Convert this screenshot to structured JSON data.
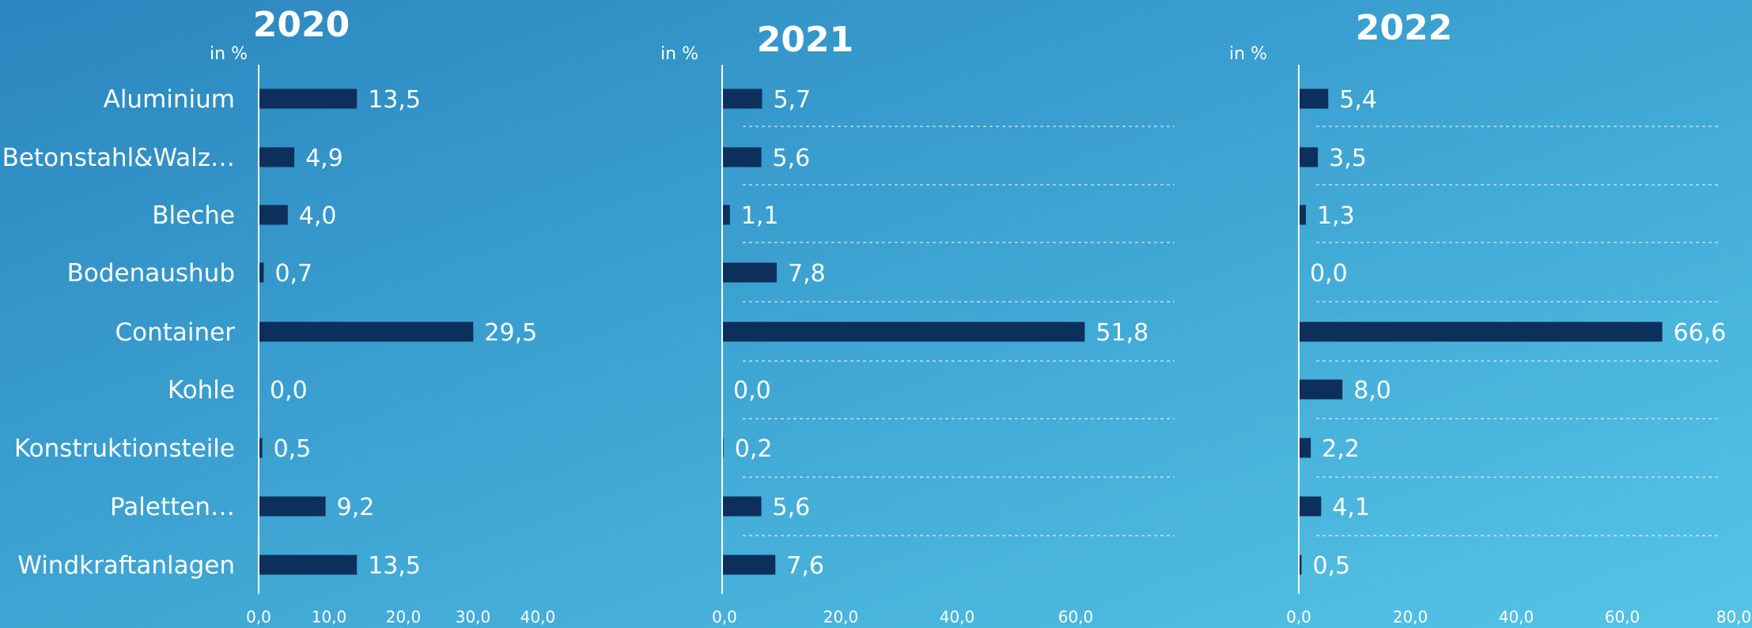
{
  "chart_data": [
    {
      "type": "bar",
      "orientation": "horizontal",
      "title": "2020",
      "unit_label": "in %",
      "categories": [
        "Aluminium",
        "Betonstahl&Walz…",
        "Bleche",
        "Bodenaushub",
        "Container",
        "Kohle",
        "Konstruktionsteile",
        "Paletten…",
        "Windkraftanlagen"
      ],
      "values": [
        13.5,
        4.9,
        4.0,
        0.7,
        29.5,
        0.0,
        0.5,
        9.2,
        13.5
      ],
      "value_labels": [
        "13,5",
        "4,9",
        "4,0",
        "0,7",
        "29,5",
        "0,0",
        "0,5",
        "9,2",
        "13,5"
      ],
      "xlim": [
        0,
        40
      ],
      "ticks": [
        "0,0",
        "10,0",
        "20,0",
        "30,0",
        "40,0"
      ],
      "gridlines": false
    },
    {
      "type": "bar",
      "orientation": "horizontal",
      "title": "2021",
      "unit_label": "in %",
      "categories": [
        "Aluminium",
        "Betonstahl&Walz…",
        "Bleche",
        "Bodenaushub",
        "Container",
        "Kohle",
        "Konstruktionsteile",
        "Paletten…",
        "Windkraftanlagen"
      ],
      "values": [
        5.7,
        5.6,
        1.1,
        7.8,
        51.8,
        0.0,
        0.2,
        5.6,
        7.6
      ],
      "value_labels": [
        "5,7",
        "5,6",
        "1,1",
        "7,8",
        "51,8",
        "0,0",
        "0,2",
        "5,6",
        "7,6"
      ],
      "xlim": [
        0,
        60
      ],
      "ticks": [
        "0,0",
        "20,0",
        "40,0",
        "60,0"
      ],
      "gridlines": true
    },
    {
      "type": "bar",
      "orientation": "horizontal",
      "title": "2022",
      "unit_label": "in %",
      "categories": [
        "Aluminium",
        "Betonstahl&Walz…",
        "Bleche",
        "Bodenaushub",
        "Container",
        "Kohle",
        "Konstruktionsteile",
        "Paletten…",
        "Windkraftanlagen"
      ],
      "values": [
        5.4,
        3.5,
        1.3,
        0.0,
        66.6,
        8.0,
        2.2,
        4.1,
        0.5
      ],
      "value_labels": [
        "5,4",
        "3,5",
        "1,3",
        "0,0",
        "66,6",
        "8,0",
        "2,2",
        "4,1",
        "0,5"
      ],
      "xlim": [
        0,
        80
      ],
      "ticks": [
        "0,0",
        "20,0",
        "40,0",
        "60,0",
        "80,0"
      ],
      "gridlines": true
    }
  ],
  "colors": {
    "bar": "#0d2f5c",
    "background_start": "#2a86be",
    "background_end": "#55c4e6",
    "text": "#ffffff"
  }
}
